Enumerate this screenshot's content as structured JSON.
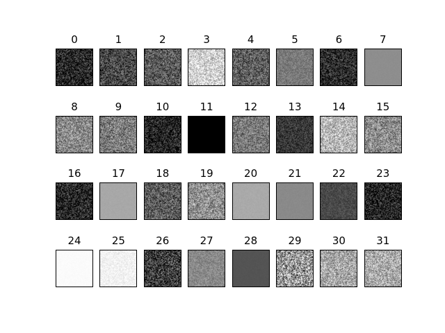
{
  "figure": {
    "grid": {
      "rows": 4,
      "cols": 8
    },
    "tiles": [
      {
        "label": "0",
        "base": "#202020",
        "noise": 0.7
      },
      {
        "label": "1",
        "base": "#4a4a4a",
        "noise": 0.6
      },
      {
        "label": "2",
        "base": "#5a5a5a",
        "noise": 0.6
      },
      {
        "label": "3",
        "base": "#d6d6d6",
        "noise": 0.6
      },
      {
        "label": "4",
        "base": "#5f5f5f",
        "noise": 0.6
      },
      {
        "label": "5",
        "base": "#7a7a7a",
        "noise": 0.25
      },
      {
        "label": "6",
        "base": "#2a2a2a",
        "noise": 0.6
      },
      {
        "label": "7",
        "base": "#8e8e8e",
        "noise": 0.02
      },
      {
        "label": "8",
        "base": "#8a8a8a",
        "noise": 0.6
      },
      {
        "label": "9",
        "base": "#7c7c7c",
        "noise": 0.6
      },
      {
        "label": "10",
        "base": "#1c1c1c",
        "noise": 0.7
      },
      {
        "label": "11",
        "base": "#000000",
        "noise": 0.0
      },
      {
        "label": "12",
        "base": "#7a7a7a",
        "noise": 0.5
      },
      {
        "label": "13",
        "base": "#383838",
        "noise": 0.35
      },
      {
        "label": "14",
        "base": "#b9b9b9",
        "noise": 0.6
      },
      {
        "label": "15",
        "base": "#8d8d8d",
        "noise": 0.6
      },
      {
        "label": "16",
        "base": "#222222",
        "noise": 0.7
      },
      {
        "label": "17",
        "base": "#a8a8a8",
        "noise": 0.03
      },
      {
        "label": "18",
        "base": "#5d5d5d",
        "noise": 0.6
      },
      {
        "label": "19",
        "base": "#919191",
        "noise": 0.6
      },
      {
        "label": "20",
        "base": "#aaaaaa",
        "noise": 0.04
      },
      {
        "label": "21",
        "base": "#8a8a8a",
        "noise": 0.03
      },
      {
        "label": "22",
        "base": "#4a4a4a",
        "noise": 0.2
      },
      {
        "label": "23",
        "base": "#1c1c1c",
        "noise": 0.7
      },
      {
        "label": "24",
        "base": "#fbfbfb",
        "noise": 0.02
      },
      {
        "label": "25",
        "base": "#f2f2f2",
        "noise": 0.15
      },
      {
        "label": "26",
        "base": "#3a3a3a",
        "noise": 0.8
      },
      {
        "label": "27",
        "base": "#8a8a8a",
        "noise": 0.25
      },
      {
        "label": "28",
        "base": "#545454",
        "noise": 0.02
      },
      {
        "label": "29",
        "base": "#9a9a9a",
        "noise": 1.0
      },
      {
        "label": "30",
        "base": "#a7a7a7",
        "noise": 0.6
      },
      {
        "label": "31",
        "base": "#aaaaaa",
        "noise": 0.6
      }
    ]
  }
}
